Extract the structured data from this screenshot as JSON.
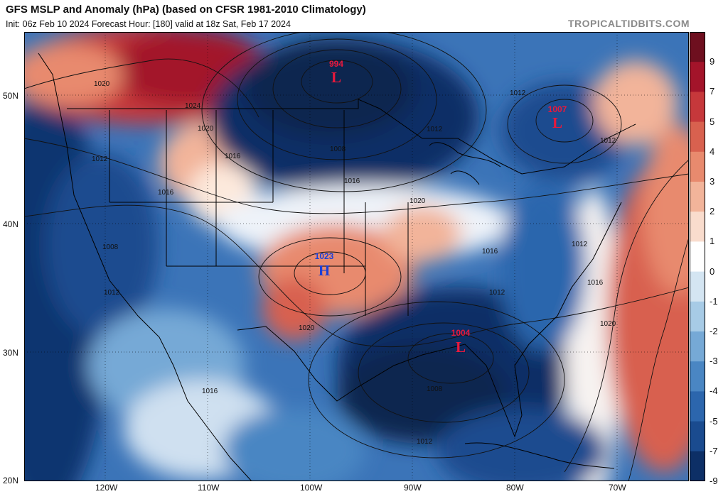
{
  "header": {
    "title": "GFS MSLP and Anomaly (hPa) (based on CFSR 1981-2010 Climatology)",
    "subtitle": "Init: 06z Feb 10 2024   Forecast Hour: [180]   valid at 18z Sat, Feb 17 2024",
    "credit": "TROPICALTIDBITS.COM"
  },
  "pressure_centers": [
    {
      "type": "L",
      "value": "994"
    },
    {
      "type": "L",
      "value": "1007"
    },
    {
      "type": "H",
      "value": "1023"
    },
    {
      "type": "L",
      "value": "1004"
    }
  ],
  "isobar_labels": [
    "1020",
    "1024",
    "1020",
    "1012",
    "1016",
    "1016",
    "1008",
    "1012",
    "1008",
    "1012",
    "1016",
    "1020",
    "1020",
    "1012",
    "1016",
    "1012",
    "1012",
    "1016",
    "1020",
    "1016",
    "1008",
    "1012",
    "1012"
  ],
  "colorbar": {
    "labels": [
      "9",
      "7",
      "5",
      "4",
      "3",
      "2",
      "1",
      "0",
      "-1",
      "-2",
      "-3",
      "-4",
      "-5",
      "-7",
      "-9"
    ],
    "colors": [
      "#6e0f1f",
      "#a3142a",
      "#c6383b",
      "#d8614f",
      "#e88a6e",
      "#f2b49a",
      "#f9dccd",
      "#ffffff",
      "#d4e5f2",
      "#a7cbe6",
      "#76a9d6",
      "#4a86c3",
      "#2c66ad",
      "#1a4b8f",
      "#0d2f66"
    ]
  },
  "axes": {
    "lat_labels": [
      "50N",
      "40N",
      "30N",
      "20N"
    ],
    "lon_labels": [
      "120W",
      "110W",
      "100W",
      "90W",
      "80W",
      "70W"
    ]
  },
  "colors": {
    "low_label": "#e8193c",
    "high_label": "#1a3fd8"
  }
}
